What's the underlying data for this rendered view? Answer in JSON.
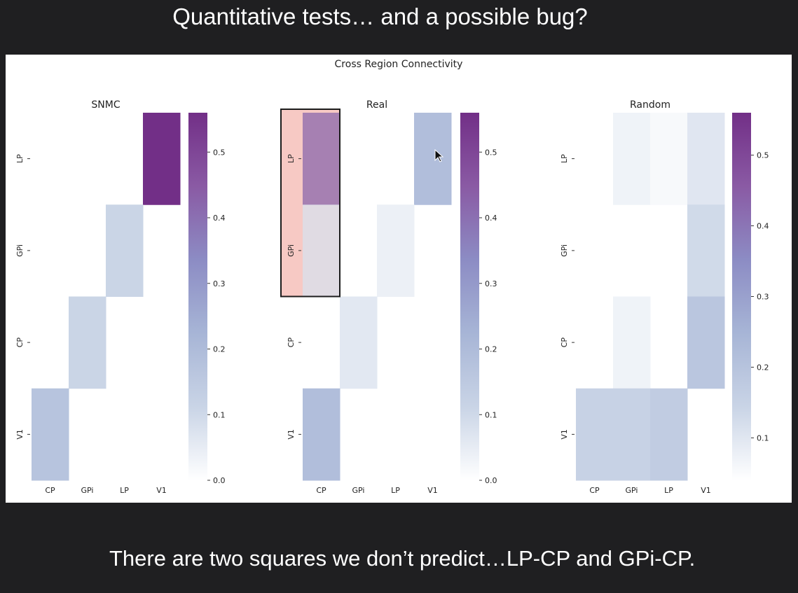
{
  "slide": {
    "title": "Quantitative tests… and a possible bug?",
    "caption": "There are two squares we don’t predict…LP-CP and GPi-CP."
  },
  "chart_data": {
    "type": "heatmap",
    "suptitle": "Cross Region Connectivity",
    "colormap": [
      "#ffffff",
      "#c9d4e6",
      "#a7b5d6",
      "#8c8cc4",
      "#8a5aa4",
      "#722f87"
    ],
    "rows": [
      "LP",
      "GPi",
      "CP",
      "V1"
    ],
    "cols": [
      "CP",
      "GPi",
      "LP",
      "V1"
    ],
    "panels": [
      {
        "title": "SNMC",
        "vmin": 0,
        "vmax": 0.56,
        "ticks": [
          0.0,
          0.1,
          0.2,
          0.3,
          0.4,
          0.5
        ],
        "tick_labels": [
          "0.0",
          "0.1",
          "0.2",
          "0.3",
          "0.4",
          "0.5"
        ],
        "values": [
          [
            0,
            0,
            0,
            0.56
          ],
          [
            0,
            0,
            0.11,
            0
          ],
          [
            0,
            0.11,
            0,
            0
          ],
          [
            0.17,
            0,
            0,
            0
          ]
        ]
      },
      {
        "title": "Real",
        "vmin": 0,
        "vmax": 0.56,
        "ticks": [
          0.0,
          0.1,
          0.2,
          0.3,
          0.4,
          0.5
        ],
        "tick_labels": [
          "0.0",
          "0.1",
          "0.2",
          "0.3",
          "0.4",
          "0.5"
        ],
        "values": [
          [
            0.42,
            0,
            0,
            0.19
          ],
          [
            0.08,
            0,
            0.04,
            0
          ],
          [
            0,
            0.06,
            0,
            0
          ],
          [
            0.19,
            0,
            0,
            0
          ]
        ],
        "highlight": {
          "rows": [
            0,
            1
          ],
          "cols": [
            0,
            0
          ],
          "fill": "#f7c9c4",
          "stroke": "#1c1c1c"
        }
      },
      {
        "title": "Random",
        "vmin": 0.04,
        "vmax": 0.56,
        "ticks": [
          0.1,
          0.2,
          0.3,
          0.4,
          0.5
        ],
        "tick_labels": [
          "0.1",
          "0.2",
          "0.3",
          "0.4",
          "0.5"
        ],
        "values": [
          [
            0,
            0.07,
            0.055,
            0.1
          ],
          [
            0,
            0,
            0,
            0.13
          ],
          [
            0,
            0.07,
            0,
            0.19
          ],
          [
            0.15,
            0.15,
            0.17,
            0
          ]
        ]
      }
    ]
  }
}
